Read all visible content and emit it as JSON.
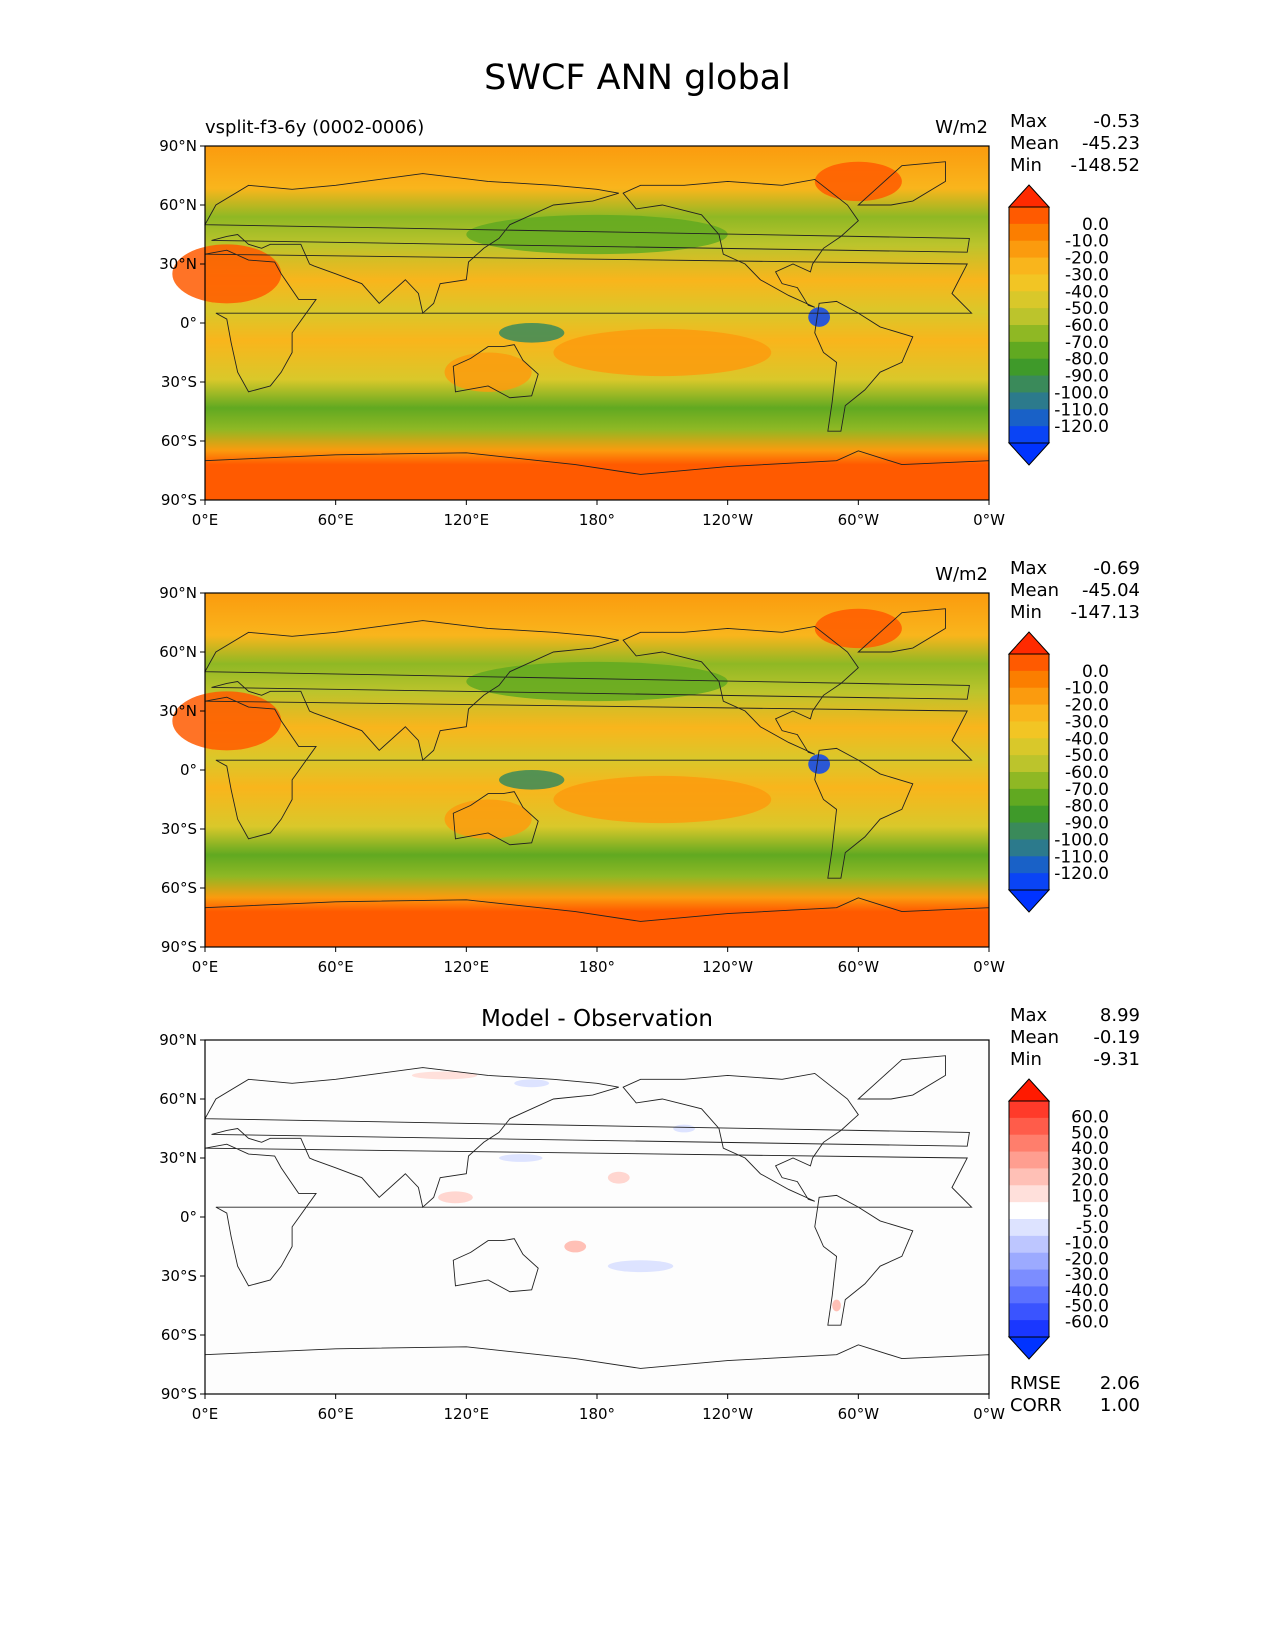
{
  "figure": {
    "title": "SWCF ANN global"
  },
  "colors": {
    "ocean_fill": "#f7b21f",
    "coast": "#222222",
    "test_scale": [
      "#ff2a00",
      "#ff5a00",
      "#fb7e00",
      "#fb9b0e",
      "#f9b51c",
      "#f2c524",
      "#d9c82a",
      "#bcc42c",
      "#8fb824",
      "#61a921",
      "#3f9a2a",
      "#3a8a5a",
      "#2c7a8c",
      "#1961c7",
      "#0a44f5",
      "#0033ff"
    ],
    "diff_scale": [
      "#ff1a00",
      "#ff3a2a",
      "#ff5c4a",
      "#ff7e6c",
      "#ff9e90",
      "#ffc0b6",
      "#ffe0db",
      "#ffffff",
      "#dde3ff",
      "#bdc6ff",
      "#9caaff",
      "#7c8dff",
      "#5b71ff",
      "#3a54ff",
      "#1a37ff",
      "#0033ff"
    ]
  },
  "chart_data": [
    {
      "type": "heatmap",
      "title": "",
      "subtitle_left": "vsplit-f3-6y (0002-0006)",
      "units": "W/m2",
      "stats": [
        {
          "label": "Max",
          "value": "-0.53"
        },
        {
          "label": "Mean",
          "value": "-45.23"
        },
        {
          "label": "Min",
          "value": "-148.52"
        }
      ],
      "x_ticks": [
        "0°E",
        "60°E",
        "120°E",
        "180°",
        "120°W",
        "60°W",
        "0°W"
      ],
      "y_ticks": [
        "90°N",
        "60°N",
        "30°N",
        "0°",
        "30°S",
        "60°S",
        "90°S"
      ],
      "xlim": [
        0,
        360
      ],
      "ylim": [
        -90,
        90
      ],
      "colorbar_levels": [
        "0.0",
        "-10.0",
        "-20.0",
        "-30.0",
        "-40.0",
        "-50.0",
        "-60.0",
        "-70.0",
        "-80.0",
        "-90.0",
        "-100.0",
        "-110.0",
        "-120.0"
      ],
      "colorbar_extend": "both"
    },
    {
      "type": "heatmap",
      "title": "",
      "subtitle_left": "",
      "units": "W/m2",
      "stats": [
        {
          "label": "Max",
          "value": "-0.69"
        },
        {
          "label": "Mean",
          "value": "-45.04"
        },
        {
          "label": "Min",
          "value": "-147.13"
        }
      ],
      "x_ticks": [
        "0°E",
        "60°E",
        "120°E",
        "180°",
        "120°W",
        "60°W",
        "0°W"
      ],
      "y_ticks": [
        "90°N",
        "60°N",
        "30°N",
        "0°",
        "30°S",
        "60°S",
        "90°S"
      ],
      "xlim": [
        0,
        360
      ],
      "ylim": [
        -90,
        90
      ],
      "colorbar_levels": [
        "0.0",
        "-10.0",
        "-20.0",
        "-30.0",
        "-40.0",
        "-50.0",
        "-60.0",
        "-70.0",
        "-80.0",
        "-90.0",
        "-100.0",
        "-110.0",
        "-120.0"
      ],
      "colorbar_extend": "both"
    },
    {
      "type": "heatmap",
      "title": "Model - Observation",
      "subtitle_left": "",
      "units": "",
      "stats": [
        {
          "label": "Max",
          "value": "8.99"
        },
        {
          "label": "Mean",
          "value": "-0.19"
        },
        {
          "label": "Min",
          "value": "-9.31"
        }
      ],
      "extra_stats": [
        {
          "label": "RMSE",
          "value": "2.06"
        },
        {
          "label": "CORR",
          "value": "1.00"
        }
      ],
      "x_ticks": [
        "0°E",
        "60°E",
        "120°E",
        "180°",
        "120°W",
        "60°W",
        "0°W"
      ],
      "y_ticks": [
        "90°N",
        "60°N",
        "30°N",
        "0°",
        "30°S",
        "60°S",
        "90°S"
      ],
      "xlim": [
        0,
        360
      ],
      "ylim": [
        -90,
        90
      ],
      "colorbar_levels": [
        "60.0",
        "50.0",
        "40.0",
        "30.0",
        "20.0",
        "10.0",
        "5.0",
        "-5.0",
        "-10.0",
        "-20.0",
        "-30.0",
        "-40.0",
        "-50.0",
        "-60.0"
      ],
      "colorbar_extend": "both"
    }
  ]
}
